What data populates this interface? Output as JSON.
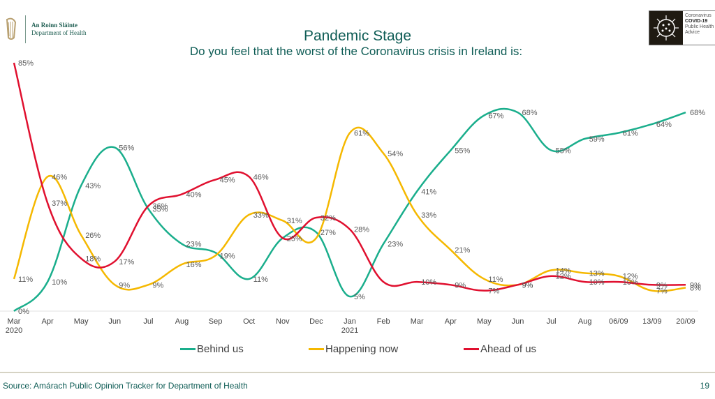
{
  "header": {
    "org_line1": "An Roinn Sláinte",
    "org_line2": "Department of Health",
    "covid_line1": "Coronavirus",
    "covid_line2": "COVID-19",
    "covid_line3": "Public Health",
    "covid_line4": "Advice"
  },
  "footer": {
    "source": "Source: Amárach Public Opinion Tracker for Department of Health",
    "page_number": "19"
  },
  "chart_data": {
    "type": "line",
    "title": "Pandemic Stage",
    "subtitle": "Do you feel that the worst of the Coronavirus crisis in Ireland is:",
    "xlabel": "",
    "ylabel": "",
    "ylim": [
      0,
      85
    ],
    "grid": false,
    "legend_position": "bottom",
    "categories": [
      "Mar 2020",
      "Apr",
      "May",
      "Jun",
      "Jul",
      "Aug",
      "Sep",
      "Oct",
      "Nov",
      "Dec",
      "Jan 2021",
      "Feb",
      "Mar",
      "Apr",
      "May",
      "Jun",
      "Jul",
      "Aug",
      "06/09",
      "13/09",
      "20/09"
    ],
    "tick_labels": [
      {
        "line1": "Mar",
        "line2": "2020"
      },
      {
        "line1": "Apr",
        "line2": ""
      },
      {
        "line1": "May",
        "line2": ""
      },
      {
        "line1": "Jun",
        "line2": ""
      },
      {
        "line1": "Jul",
        "line2": ""
      },
      {
        "line1": "Aug",
        "line2": ""
      },
      {
        "line1": "Sep",
        "line2": ""
      },
      {
        "line1": "Oct",
        "line2": ""
      },
      {
        "line1": "Nov",
        "line2": ""
      },
      {
        "line1": "Dec",
        "line2": ""
      },
      {
        "line1": "Jan",
        "line2": "2021"
      },
      {
        "line1": "Feb",
        "line2": ""
      },
      {
        "line1": "Mar",
        "line2": ""
      },
      {
        "line1": "Apr",
        "line2": ""
      },
      {
        "line1": "May",
        "line2": ""
      },
      {
        "line1": "Jun",
        "line2": ""
      },
      {
        "line1": "Jul",
        "line2": ""
      },
      {
        "line1": "Aug",
        "line2": ""
      },
      {
        "line1": "06/09",
        "line2": ""
      },
      {
        "line1": "13/09",
        "line2": ""
      },
      {
        "line1": "20/09",
        "line2": ""
      }
    ],
    "series": [
      {
        "name": "Behind us",
        "color": "#1aae8c",
        "values": [
          0,
          10,
          43,
          56,
          35,
          23,
          20,
          11,
          25,
          27,
          5,
          23,
          41,
          55,
          67,
          68,
          55,
          59,
          61,
          64,
          68
        ],
        "labels": [
          "0%",
          "10%",
          "43%",
          "56%",
          "35%",
          "23%",
          "",
          "11%",
          "",
          "27%",
          "5%",
          "23%",
          "41%",
          "55%",
          "67%",
          "68%",
          "55%",
          "59%",
          "61%",
          "64%",
          "68%"
        ]
      },
      {
        "name": "Happening now",
        "color": "#f5b800",
        "values": [
          11,
          46,
          26,
          9,
          9,
          16,
          19,
          33,
          31,
          25,
          61,
          54,
          33,
          21,
          11,
          9,
          14,
          13,
          12,
          7,
          8
        ],
        "labels": [
          "11%",
          "46%",
          "26%",
          "9%",
          "9%",
          "16%",
          "19%",
          "33%",
          "31%",
          "",
          "61%",
          "54%",
          "33%",
          "21%",
          "11%",
          "9%",
          "14%",
          "13%",
          "12%",
          "7%",
          "8%"
        ]
      },
      {
        "name": "Ahead of us",
        "color": "#e0102f",
        "values": [
          85,
          37,
          18,
          17,
          36,
          40,
          45,
          46,
          25,
          32,
          28,
          10,
          10,
          9,
          7,
          9,
          12,
          10,
          10,
          9,
          9
        ],
        "labels": [
          "85%",
          "37%",
          "18%",
          "17%",
          "36%",
          "40%",
          "45%",
          "46%",
          "25%",
          "32%",
          "28%",
          "",
          "10%",
          "9%",
          "7%",
          "9%",
          "12%",
          "10%",
          "10%",
          "9%",
          "9%"
        ]
      }
    ]
  }
}
